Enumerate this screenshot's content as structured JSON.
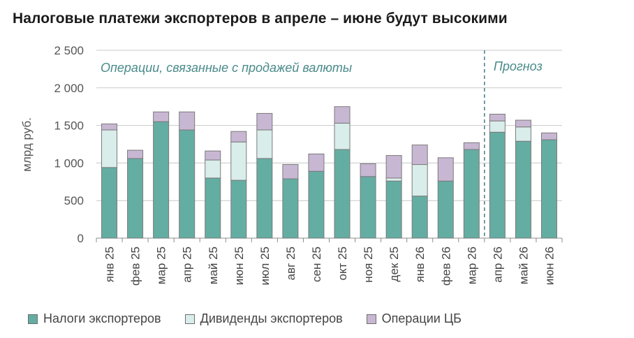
{
  "title": "Налоговые платежи экспортеров в апреле – июне будут высокими",
  "chart_data": {
    "type": "bar",
    "stacked": true,
    "ylabel": "млрд руб.",
    "ylim": [
      0,
      2500
    ],
    "yticks": [
      0,
      500,
      1000,
      1500,
      2000,
      2500
    ],
    "ytick_labels": [
      "0",
      "500",
      "1 000",
      "1 500",
      "2 000",
      "2 500"
    ],
    "categories": [
      "янв 25",
      "фев 25",
      "мар 25",
      "апр 25",
      "май 25",
      "июн 25",
      "июл 25",
      "авг 25",
      "сен 25",
      "окт 25",
      "ноя 25",
      "дек 25",
      "янв 26",
      "фев 26",
      "мар 26",
      "апр 26",
      "май 26",
      "июн 26"
    ],
    "series": [
      {
        "name": "Налоги экспортеров",
        "color": "#64ada2",
        "values": [
          940,
          1060,
          1550,
          1440,
          800,
          770,
          1060,
          790,
          890,
          1180,
          820,
          760,
          560,
          760,
          1180,
          1410,
          1290,
          1310
        ]
      },
      {
        "name": "Дивиденды экспортеров",
        "color": "#d9edea",
        "values": [
          500,
          0,
          0,
          0,
          240,
          510,
          380,
          0,
          0,
          350,
          0,
          40,
          420,
          0,
          0,
          150,
          190,
          0
        ]
      },
      {
        "name": "Операции ЦБ",
        "color": "#c8b7d3",
        "values": [
          80,
          110,
          130,
          240,
          120,
          140,
          220,
          190,
          230,
          220,
          170,
          300,
          260,
          310,
          90,
          90,
          90,
          90
        ]
      }
    ],
    "annotations": [
      {
        "text": "Операции, связанные с продажей валюты"
      },
      {
        "text": "Прогноз"
      }
    ],
    "forecast_divider_after": "мар 26",
    "grid": "horizontal",
    "legend_position": "bottom"
  }
}
